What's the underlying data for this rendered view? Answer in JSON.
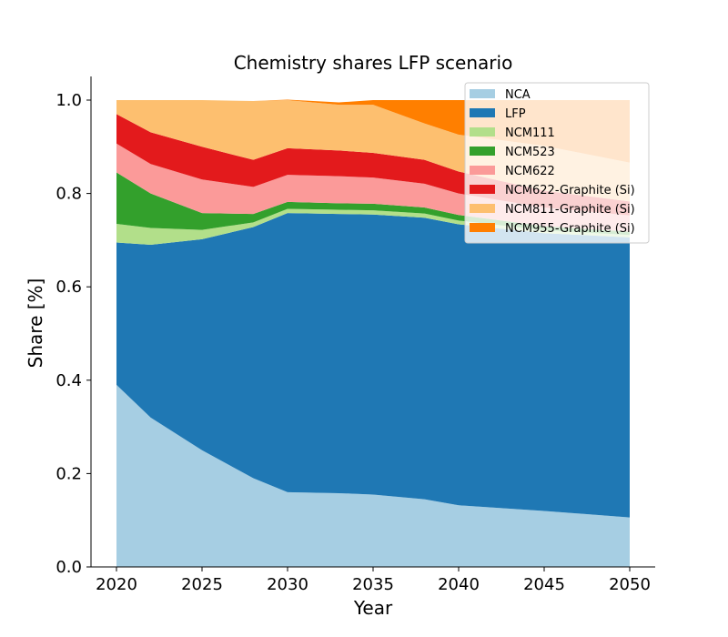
{
  "chart_data": {
    "type": "area",
    "stacked": true,
    "title": "Chemistry shares LFP scenario",
    "xlabel": "Year",
    "ylabel": "Share [%]",
    "xlim": [
      2020,
      2050
    ],
    "ylim": [
      0,
      1.05
    ],
    "xticks": [
      2020,
      2025,
      2030,
      2035,
      2040,
      2045,
      2050
    ],
    "yticks": [
      0.0,
      0.2,
      0.4,
      0.6,
      0.8,
      1.0
    ],
    "ytick_labels": [
      "0.0",
      "0.2",
      "0.4",
      "0.6",
      "0.8",
      "1.0"
    ],
    "legend_position": "top-right",
    "grid": false,
    "x": [
      2020,
      2022,
      2025,
      2028,
      2030,
      2033,
      2035,
      2038,
      2040,
      2045,
      2050
    ],
    "series": [
      {
        "name": "NCA",
        "color": "#a6cee3",
        "values": [
          0.39,
          0.32,
          0.25,
          0.19,
          0.16,
          0.158,
          0.155,
          0.145,
          0.132,
          0.12,
          0.106
        ]
      },
      {
        "name": "LFP",
        "color": "#1f78b4",
        "values": [
          0.305,
          0.37,
          0.452,
          0.538,
          0.598,
          0.598,
          0.6,
          0.603,
          0.602,
          0.595,
          0.6
        ]
      },
      {
        "name": "NCM111",
        "color": "#b2df8a",
        "values": [
          0.04,
          0.036,
          0.02,
          0.01,
          0.009,
          0.009,
          0.009,
          0.009,
          0.008,
          0.006,
          0.005
        ]
      },
      {
        "name": "NCM523",
        "color": "#33a02c",
        "values": [
          0.11,
          0.074,
          0.036,
          0.018,
          0.015,
          0.014,
          0.014,
          0.013,
          0.012,
          0.009,
          0.007
        ]
      },
      {
        "name": "NCM622",
        "color": "#fb9a99",
        "values": [
          0.062,
          0.063,
          0.072,
          0.058,
          0.058,
          0.058,
          0.056,
          0.051,
          0.046,
          0.04,
          0.035
        ]
      },
      {
        "name": "NCM622-Graphite (Si)",
        "color": "#e31a1c",
        "values": [
          0.063,
          0.068,
          0.07,
          0.058,
          0.057,
          0.055,
          0.053,
          0.051,
          0.047,
          0.036,
          0.03
        ]
      },
      {
        "name": "NCM811-Graphite (Si)",
        "color": "#fdbf6f",
        "values": [
          0.03,
          0.069,
          0.1,
          0.126,
          0.103,
          0.098,
          0.103,
          0.078,
          0.079,
          0.096,
          0.083
        ]
      },
      {
        "name": "NCM955-Graphite (Si)",
        "color": "#ff7f00",
        "values": [
          0,
          0,
          0,
          0,
          0.001,
          0.005,
          0.01,
          0.05,
          0.074,
          0.098,
          0.134
        ]
      }
    ]
  }
}
